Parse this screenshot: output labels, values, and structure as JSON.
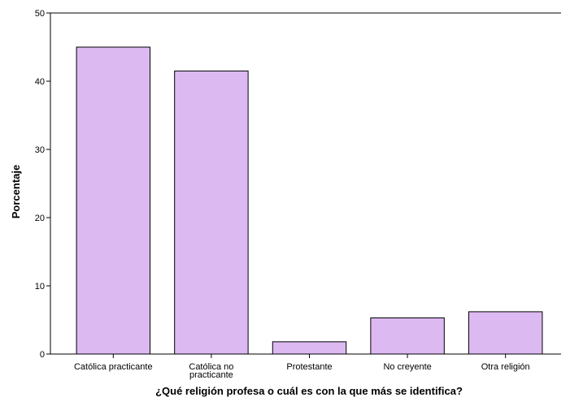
{
  "chart_data": {
    "type": "bar",
    "categories": [
      [
        "Católica practicante"
      ],
      [
        "Católica no",
        "practicante"
      ],
      [
        "Protestante"
      ],
      [
        "No creyente"
      ],
      [
        "Otra religión"
      ]
    ],
    "values": [
      45.0,
      41.5,
      1.8,
      5.3,
      6.2
    ],
    "xlabel": "¿Qué religión profesa o cuál es con la que más se identifica?",
    "ylabel": "Porcentaje",
    "ylim": [
      0,
      50
    ],
    "yticks": [
      0,
      10,
      20,
      30,
      40,
      50
    ],
    "grid": false,
    "legend": "none",
    "colors": {
      "bar_fill": "#ddb9f2",
      "bar_stroke": "#000000",
      "axis": "#000000"
    }
  }
}
